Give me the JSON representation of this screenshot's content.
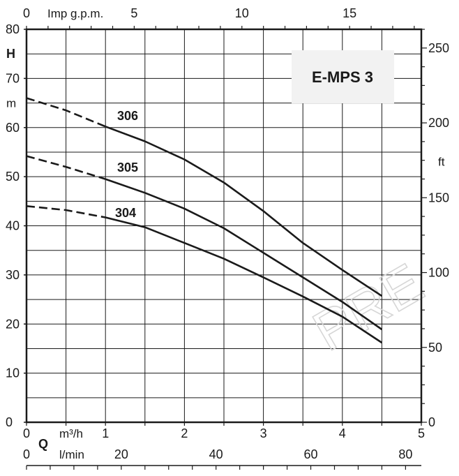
{
  "chart_data": {
    "type": "line",
    "title": "E-MPS 3",
    "watermark": "PRE",
    "colors": {
      "curve": "#1a1a1a",
      "grid": "#1a1a1a",
      "title_box": "#f2f2f2"
    },
    "axes": {
      "y_left": {
        "label_top": "H",
        "label_unit": "m",
        "range": [
          0,
          80
        ],
        "ticks": [
          0,
          10,
          20,
          30,
          40,
          50,
          60,
          70,
          80
        ]
      },
      "y_right": {
        "label": "ft",
        "range": [
          0,
          262.5
        ],
        "ticks": [
          0,
          50,
          100,
          150,
          200,
          250
        ]
      },
      "x_bottom": {
        "label": "Q",
        "unit_label": "m³/h",
        "range": [
          0,
          5
        ],
        "ticks": [
          0,
          1,
          2,
          3,
          4,
          5
        ]
      },
      "x_bottom2": {
        "unit_label": "l/min",
        "range": [
          0,
          83.33
        ],
        "ticks": [
          0,
          20,
          40,
          60,
          80
        ]
      },
      "x_top": {
        "unit_label": "Imp g.p.m.",
        "range": [
          0,
          18.33
        ],
        "ticks": [
          0,
          5,
          10,
          15
        ]
      }
    },
    "grid": true,
    "series": [
      {
        "name": "306",
        "dashed": [
          [
            0,
            66
          ],
          [
            0.5,
            63.5
          ],
          [
            1,
            60.2
          ]
        ],
        "solid": [
          [
            1,
            60.2
          ],
          [
            1.5,
            57.2
          ],
          [
            2,
            53.5
          ],
          [
            2.5,
            48.8
          ],
          [
            3,
            43
          ],
          [
            3.5,
            36.5
          ],
          [
            4,
            31
          ],
          [
            4.5,
            25.7
          ]
        ]
      },
      {
        "name": "305",
        "dashed": [
          [
            0,
            54.2
          ],
          [
            0.5,
            52
          ],
          [
            1,
            49.5
          ]
        ],
        "solid": [
          [
            1,
            49.5
          ],
          [
            1.5,
            46.7
          ],
          [
            2,
            43.5
          ],
          [
            2.5,
            39.5
          ],
          [
            3,
            34.5
          ],
          [
            3.5,
            29.5
          ],
          [
            4,
            24.5
          ],
          [
            4.5,
            18.9
          ]
        ]
      },
      {
        "name": "304",
        "dashed": [
          [
            0,
            44
          ],
          [
            0.5,
            43.2
          ],
          [
            1,
            41.7
          ]
        ],
        "solid": [
          [
            1,
            41.7
          ],
          [
            1.5,
            39.7
          ],
          [
            2,
            36.5
          ],
          [
            2.5,
            33.3
          ],
          [
            3,
            29.5
          ],
          [
            3.5,
            25.6
          ],
          [
            4,
            21.5
          ],
          [
            4.5,
            16.2
          ]
        ]
      }
    ]
  }
}
